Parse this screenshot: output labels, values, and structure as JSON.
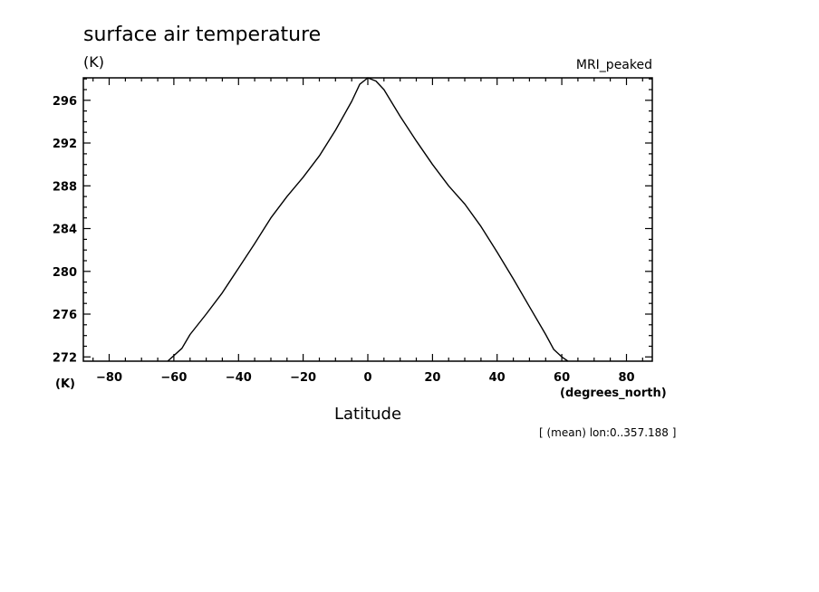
{
  "chart_data": {
    "type": "line",
    "title": "surface air temperature",
    "y_unit": "(K)",
    "model_label": "MRI_peaked",
    "y_axis_unit_bottom": "(K)",
    "x_unit": "(degrees_north)",
    "xlabel": "Latitude",
    "annotation": "[ (mean) lon:0..357.188 ]",
    "xlim": [
      -88,
      88
    ],
    "ylim": [
      271.6,
      298.1
    ],
    "x_ticks": [
      -80,
      -60,
      -40,
      -20,
      0,
      20,
      40,
      60,
      80
    ],
    "x_tick_labels": [
      "−80",
      "−60",
      "−40",
      "−20",
      "0",
      "20",
      "40",
      "60",
      "80"
    ],
    "y_ticks": [
      272,
      276,
      280,
      284,
      288,
      292,
      296
    ],
    "y_tick_labels": [
      "272",
      "276",
      "280",
      "284",
      "288",
      "292",
      "296"
    ],
    "grid": false,
    "series": [
      {
        "x": [
          -61.9,
          -57.5,
          -55,
          -50,
          -45,
          -40,
          -35,
          -30,
          -25,
          -20,
          -15,
          -10,
          -5,
          -2.5,
          0,
          2.5,
          5,
          10,
          15,
          20,
          25,
          30,
          35,
          40,
          45,
          50,
          55,
          57.5,
          60,
          61.9
        ],
        "y": [
          271.6,
          272.8,
          274.1,
          276.0,
          278.0,
          280.3,
          282.6,
          285.0,
          287.0,
          288.8,
          290.8,
          293.2,
          295.9,
          297.5,
          298.1,
          297.8,
          297.0,
          294.5,
          292.2,
          290.0,
          288.0,
          286.3,
          284.2,
          281.8,
          279.3,
          276.7,
          274.1,
          272.7,
          272.0,
          271.6
        ]
      }
    ]
  }
}
